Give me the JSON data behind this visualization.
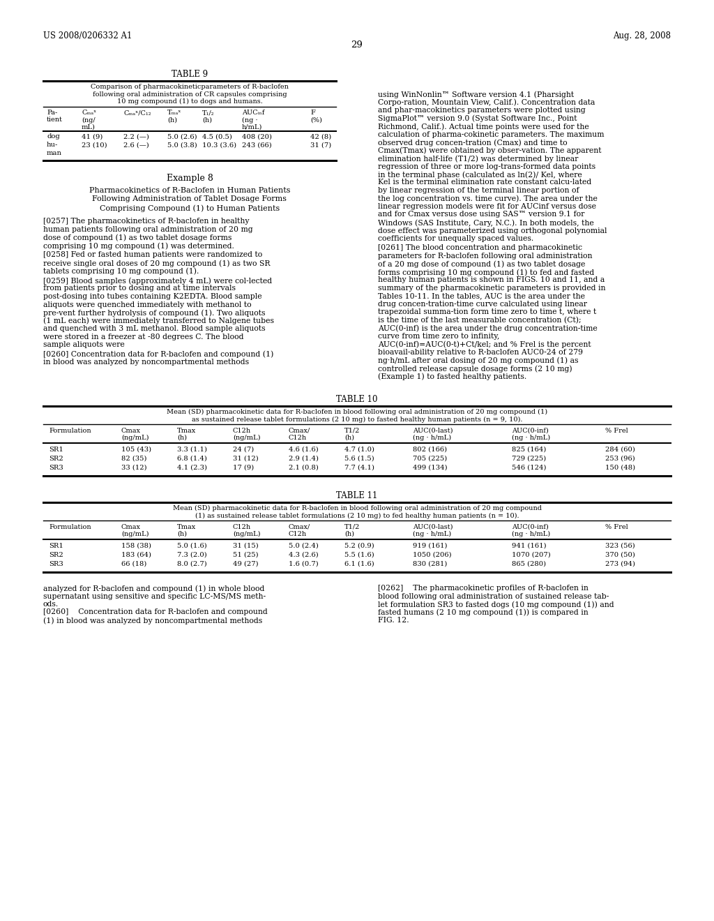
{
  "header_left": "US 2008/0206332 A1",
  "header_right": "Aug. 28, 2008",
  "page_number": "29",
  "background_color": "#ffffff",
  "table9_title": "TABLE 9",
  "table9_caption_lines": [
    "Comparison of pharmacokineticparameters of R-baclofen",
    "following oral administration of CR capsules comprising",
    "10 mg compound (1) to dogs and humans."
  ],
  "example8_title": "Example 8",
  "example8_sub_lines": [
    "Pharmacokinetics of R-Baclofen in Human Patients",
    "Following Administration of Tablet Dosage Forms",
    "Comprising Compound (1) to Human Patients"
  ],
  "para_0257": "[0257]    The pharmacokinetics of R-baclofen in healthy human patients following oral administration of 20 mg dose of compound (1) as two tablet dosage forms comprising 10 mg compound (1) was determined.",
  "para_0258": "[0258]    Fed or fasted human patients were randomized to receive single oral doses of 20 mg compound (1) as two SR tablets comprising 10 mg compound (1).",
  "para_0259": "[0259]    Blood samples (approximately 4 mL) were col-lected from patients prior to dosing and at time intervals post-dosing into tubes containing K2EDTA. Blood sample aliquots were quenched immediately with methanol to pre-vent further hydrolysis of compound (1). Two aliquots (1 mL each) were immediately transferred to Nalgene tubes and quenched with 3 mL methanol. Blood sample aliquots were stored in a freezer at -80 degrees C. The blood sample aliquots were",
  "para_0260": "[0260]    Concentration data for R-baclofen and compound (1) in blood was analyzed by noncompartmental methods",
  "right_para1": "using WinNonlin™ Software version 4.1 (Pharsight Corpo-ration, Mountain View, Calif.). Concentration data and phar-macokinetics parameters were plotted using SigmaPlot™ version 9.0 (Systat Software Inc., Point Richmond, Calif.). Actual time points were used for the calculation of pharma-cokinetic parameters. The maximum observed drug concen-tration (Cmax) and time to Cmax(Tmax) were obtained by obser-vation.  The apparent elimination half-life (T1/2) was determined by linear regression of three or more log-trans-formed data points in the terminal phase (calculated as ln(2)/ Kel, where Kel is the terminal elimination rate constant calcu-lated by linear regression of the terminal linear portion of the log concentration vs. time curve). The area under the linear regression models were fit for AUCinf versus dose and for Cmax versus dose using SAS™ version 9.1 for Windows (SAS Institute, Cary, N.C.). In both models, the dose effect was parameterized using orthogonal polynomial coefficients for unequally spaced values.",
  "right_para2": "[0261]    The blood concentration and pharmacokinetic parameters for R-baclofen following oral administration of a 20 mg dose of compound (1) as two tablet dosage forms comprising 10 mg compound (1) to fed and fasted healthy human patients is shown in FIGS. 10 and 11, and a summary of the pharmacokinetic parameters is provided in Tables 10-11. In the tables, AUC is the area under the drug concen-tration-time curve calculated using linear trapezoidal summa-tion form time zero to time t, where t is the time of the last measurable concentration (Ct); AUC(0-inf) is the area under the drug concentration-time curve from time zero to infinity, AUC(0-inf)=AUC(0-t)+Ct/kel; and % Frel is the percent bioavail-ability relative to R-baclofen AUC0-24 of 279 ng·h/mL after oral dosing of 20 mg compound (1) as controlled release capsule dosage forms (2 10 mg) (Example 1) to fasted healthy patients.",
  "table10_title": "TABLE 10",
  "table10_caption_lines": [
    "Mean (SD) pharmacokinetic data for R-baclofen in blood following oral administration of 20 mg compound (1)",
    "as sustained release tablet formulations (2 10 mg) to fasted healthy human patients (n = 9, 10)."
  ],
  "table10_hdrs": [
    "Formulation",
    "Cmax\n(ng/mL)",
    "Tmax\n(h)",
    "C12h\n(ng/mL)",
    "Cmax/\nC12h",
    "T1/2\n(h)",
    "AUC(0-last)\n(ng · h/mL)",
    "AUC(0-inf)\n(ng · h/mL)",
    "% Frel"
  ],
  "table10_data": [
    [
      "SR1",
      "105 (43)",
      "3.3 (1.1)",
      "24 (7)",
      "4.6 (1.6)",
      "4.7 (1.0)",
      "802 (166)",
      "825 (164)",
      "284 (60)"
    ],
    [
      "SR2",
      "82 (35)",
      "6.8 (1.4)",
      "31 (12)",
      "2.9 (1.4)",
      "5.6 (1.5)",
      "705 (225)",
      "729 (225)",
      "253 (96)"
    ],
    [
      "SR3",
      "33 (12)",
      "4.1 (2.3)",
      "17 (9)",
      "2.1 (0.8)",
      "7.7 (4.1)",
      "499 (134)",
      "546 (124)",
      "150 (48)"
    ]
  ],
  "table11_title": "TABLE 11",
  "table11_caption_lines": [
    "Mean (SD) pharmacokinetic data for R-baclofen in blood following oral administration of 20 mg compound",
    "(1) as sustained release tablet formulations (2 10 mg) to fed healthy human patients (n = 10)."
  ],
  "table11_data": [
    [
      "SR1",
      "158 (38)",
      "5.0 (1.6)",
      "31 (15)",
      "5.0 (2.4)",
      "5.2 (0.9)",
      "919 (161)",
      "941 (161)",
      "323 (56)"
    ],
    [
      "SR2",
      "183 (64)",
      "7.3 (2.0)",
      "51 (25)",
      "4.3 (2.6)",
      "5.5 (1.6)",
      "1050 (206)",
      "1070 (207)",
      "370 (50)"
    ],
    [
      "SR3",
      "66 (18)",
      "8.0 (2.7)",
      "49 (27)",
      "1.6 (0.7)",
      "6.1 (1.6)",
      "830 (281)",
      "865 (280)",
      "273 (94)"
    ]
  ],
  "bot_left_lines": [
    "analyzed for R-baclofen and compound (1) in whole blood",
    "supernatant using sensitive and specific LC-MS/MS meth-",
    "ods.",
    "[0260]    Concentration data for R-baclofen and compound",
    "(1) in blood was analyzed by noncompartmental methods"
  ],
  "bot_right_lines": [
    "[0262]    The pharmacokinetic profiles of R-baclofen in",
    "blood following oral administration of sustained release tab-",
    "let formulation SR3 to fasted dogs (10 mg compound (1)) and",
    "fasted humans (2 10 mg compound (1)) is compared in",
    "FIG. 12."
  ]
}
